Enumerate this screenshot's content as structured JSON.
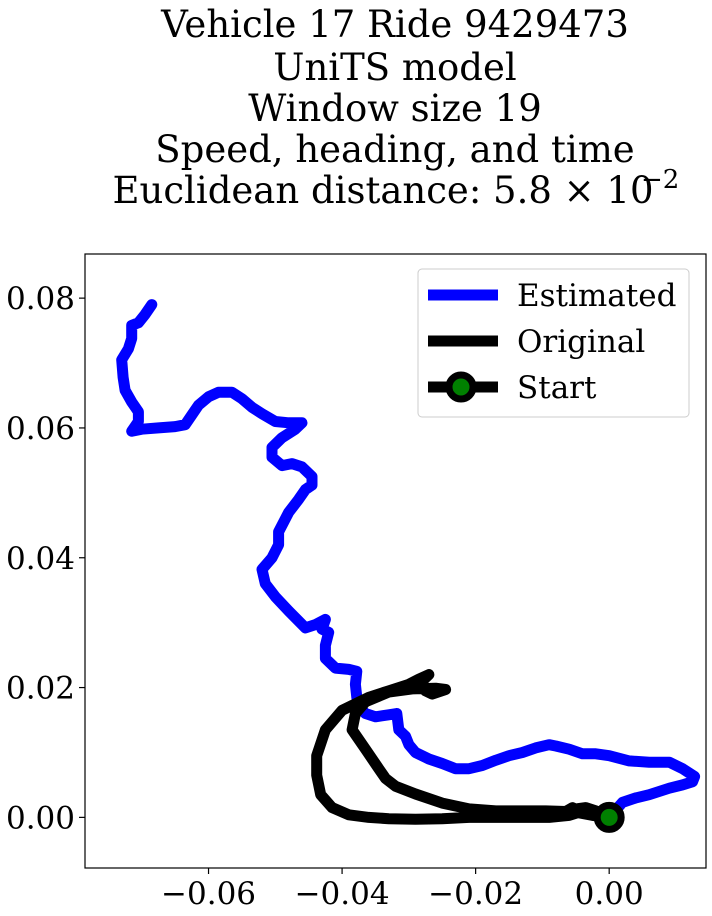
{
  "chart_data": {
    "type": "line",
    "title_lines": [
      "Vehicle 17 Ride 9429473",
      "UniTS model",
      "Window size 19",
      "Speed, heading, and time",
      "Euclidean distance: 5.8 × 10",
      "−2"
    ],
    "xlim": [
      -0.0785,
      0.0145
    ],
    "ylim": [
      -0.0078,
      0.0868
    ],
    "x_ticks": [
      -0.06,
      -0.04,
      -0.02,
      0.0
    ],
    "x_tick_labels": [
      "−0.06",
      "−0.04",
      "−0.02",
      "0.00"
    ],
    "y_ticks": [
      0.0,
      0.02,
      0.04,
      0.06,
      0.08
    ],
    "y_tick_labels": [
      "0.00",
      "0.02",
      "0.04",
      "0.06",
      "0.08"
    ],
    "grid": false,
    "legend_position": "top-right",
    "series": [
      {
        "name": "Estimated",
        "color": "#0000ff",
        "points": [
          [
            0.0,
            0.0
          ],
          [
            0.002,
            0.0023
          ],
          [
            0.004,
            0.003
          ],
          [
            0.006,
            0.0035
          ],
          [
            0.009,
            0.0045
          ],
          [
            0.011,
            0.005
          ],
          [
            0.0125,
            0.0055
          ],
          [
            0.0128,
            0.0063
          ],
          [
            0.011,
            0.0075
          ],
          [
            0.009,
            0.0085
          ],
          [
            0.006,
            0.0085
          ],
          [
            0.003,
            0.0087
          ],
          [
            0.0,
            0.0095
          ],
          [
            -0.002,
            0.0098
          ],
          [
            -0.004,
            0.0098
          ],
          [
            -0.006,
            0.0105
          ],
          [
            -0.008,
            0.011
          ],
          [
            -0.009,
            0.0112
          ],
          [
            -0.011,
            0.0107
          ],
          [
            -0.013,
            0.01
          ],
          [
            -0.015,
            0.0095
          ],
          [
            -0.017,
            0.0088
          ],
          [
            -0.019,
            0.008
          ],
          [
            -0.021,
            0.0075
          ],
          [
            -0.023,
            0.0075
          ],
          [
            -0.025,
            0.0083
          ],
          [
            -0.027,
            0.009
          ],
          [
            -0.029,
            0.01
          ],
          [
            -0.03,
            0.0112
          ],
          [
            -0.0305,
            0.0125
          ],
          [
            -0.0315,
            0.0135
          ],
          [
            -0.0318,
            0.016
          ],
          [
            -0.033,
            0.0158
          ],
          [
            -0.035,
            0.0155
          ],
          [
            -0.0365,
            0.016
          ],
          [
            -0.0375,
            0.017
          ],
          [
            -0.0378,
            0.0185
          ],
          [
            -0.038,
            0.0205
          ],
          [
            -0.0378,
            0.0225
          ],
          [
            -0.039,
            0.0228
          ],
          [
            -0.041,
            0.023
          ],
          [
            -0.0425,
            0.0245
          ],
          [
            -0.0425,
            0.0265
          ],
          [
            -0.042,
            0.0285
          ],
          [
            -0.043,
            0.029
          ],
          [
            -0.0425,
            0.0305
          ],
          [
            -0.044,
            0.0297
          ],
          [
            -0.0455,
            0.0292
          ],
          [
            -0.048,
            0.0318
          ],
          [
            -0.05,
            0.034
          ],
          [
            -0.0515,
            0.036
          ],
          [
            -0.052,
            0.0382
          ],
          [
            -0.0505,
            0.04
          ],
          [
            -0.0495,
            0.042
          ],
          [
            -0.0495,
            0.044
          ],
          [
            -0.048,
            0.047
          ],
          [
            -0.0465,
            0.049
          ],
          [
            -0.0455,
            0.0505
          ],
          [
            -0.0445,
            0.0512
          ],
          [
            -0.0445,
            0.0525
          ],
          [
            -0.046,
            0.054
          ],
          [
            -0.0475,
            0.0545
          ],
          [
            -0.049,
            0.0542
          ],
          [
            -0.0505,
            0.0555
          ],
          [
            -0.0505,
            0.057
          ],
          [
            -0.049,
            0.0585
          ],
          [
            -0.047,
            0.0598
          ],
          [
            -0.046,
            0.0608
          ],
          [
            -0.048,
            0.0608
          ],
          [
            -0.05,
            0.061
          ],
          [
            -0.052,
            0.0622
          ],
          [
            -0.0535,
            0.0632
          ],
          [
            -0.055,
            0.0645
          ],
          [
            -0.0565,
            0.0655
          ],
          [
            -0.0585,
            0.0655
          ],
          [
            -0.06,
            0.0648
          ],
          [
            -0.0615,
            0.0635
          ],
          [
            -0.0625,
            0.062
          ],
          [
            -0.0635,
            0.0605
          ],
          [
            -0.065,
            0.0602
          ],
          [
            -0.0675,
            0.06
          ],
          [
            -0.07,
            0.0598
          ],
          [
            -0.0715,
            0.0595
          ],
          [
            -0.0705,
            0.061
          ],
          [
            -0.0705,
            0.0625
          ],
          [
            -0.0715,
            0.064
          ],
          [
            -0.0725,
            0.0658
          ],
          [
            -0.0728,
            0.0678
          ],
          [
            -0.073,
            0.0705
          ],
          [
            -0.072,
            0.0722
          ],
          [
            -0.0715,
            0.0738
          ],
          [
            -0.0715,
            0.0758
          ],
          [
            -0.0705,
            0.0762
          ],
          [
            -0.0695,
            0.0775
          ],
          [
            -0.0685,
            0.079
          ]
        ]
      },
      {
        "name": "Original",
        "color": "#000000",
        "points": [
          [
            0.0,
            0.0
          ],
          [
            -0.0025,
            0.0003
          ],
          [
            -0.005,
            0.0008
          ],
          [
            -0.0055,
            0.0015
          ],
          [
            -0.0065,
            0.0009
          ],
          [
            -0.0095,
            0.001
          ],
          [
            -0.013,
            0.001
          ],
          [
            -0.017,
            0.001
          ],
          [
            -0.021,
            0.0013
          ],
          [
            -0.025,
            0.0022
          ],
          [
            -0.029,
            0.0036
          ],
          [
            -0.032,
            0.0048
          ],
          [
            -0.0335,
            0.006
          ],
          [
            -0.0345,
            0.0075
          ],
          [
            -0.0365,
            0.0105
          ],
          [
            -0.0385,
            0.0135
          ],
          [
            -0.038,
            0.016
          ],
          [
            -0.0365,
            0.0178
          ],
          [
            -0.033,
            0.0193
          ],
          [
            -0.0295,
            0.0198
          ],
          [
            -0.026,
            0.0199
          ],
          [
            -0.0245,
            0.0197
          ],
          [
            -0.0265,
            0.019
          ],
          [
            -0.0275,
            0.0195
          ],
          [
            -0.0285,
            0.0205
          ],
          [
            -0.0295,
            0.02
          ],
          [
            -0.028,
            0.021
          ],
          [
            -0.027,
            0.022
          ],
          [
            -0.0285,
            0.0213
          ],
          [
            -0.03,
            0.0205
          ],
          [
            -0.033,
            0.0195
          ],
          [
            -0.036,
            0.0185
          ],
          [
            -0.04,
            0.0165
          ],
          [
            -0.0425,
            0.0135
          ],
          [
            -0.0438,
            0.0095
          ],
          [
            -0.0438,
            0.0065
          ],
          [
            -0.0432,
            0.0035
          ],
          [
            -0.0415,
            0.0015
          ],
          [
            -0.039,
            0.0004
          ],
          [
            -0.036,
            0.0
          ],
          [
            -0.033,
            -0.0002
          ],
          [
            -0.029,
            -0.0003
          ],
          [
            -0.025,
            -0.0002
          ],
          [
            -0.021,
            0.0
          ],
          [
            -0.017,
            0.0
          ],
          [
            -0.013,
            0.0
          ],
          [
            -0.009,
            0.0
          ],
          [
            -0.006,
            0.0003
          ],
          [
            -0.0045,
            0.0008
          ],
          [
            -0.005,
            0.0013
          ],
          [
            -0.0035,
            0.0015
          ],
          [
            -0.002,
            0.001
          ],
          [
            -0.001,
            0.0004
          ],
          [
            0.0,
            0.0
          ]
        ]
      }
    ],
    "start_marker": {
      "name": "Start",
      "x": 0.0,
      "y": 0.0,
      "edge_color": "#000000",
      "fill_color": "#008000"
    }
  }
}
